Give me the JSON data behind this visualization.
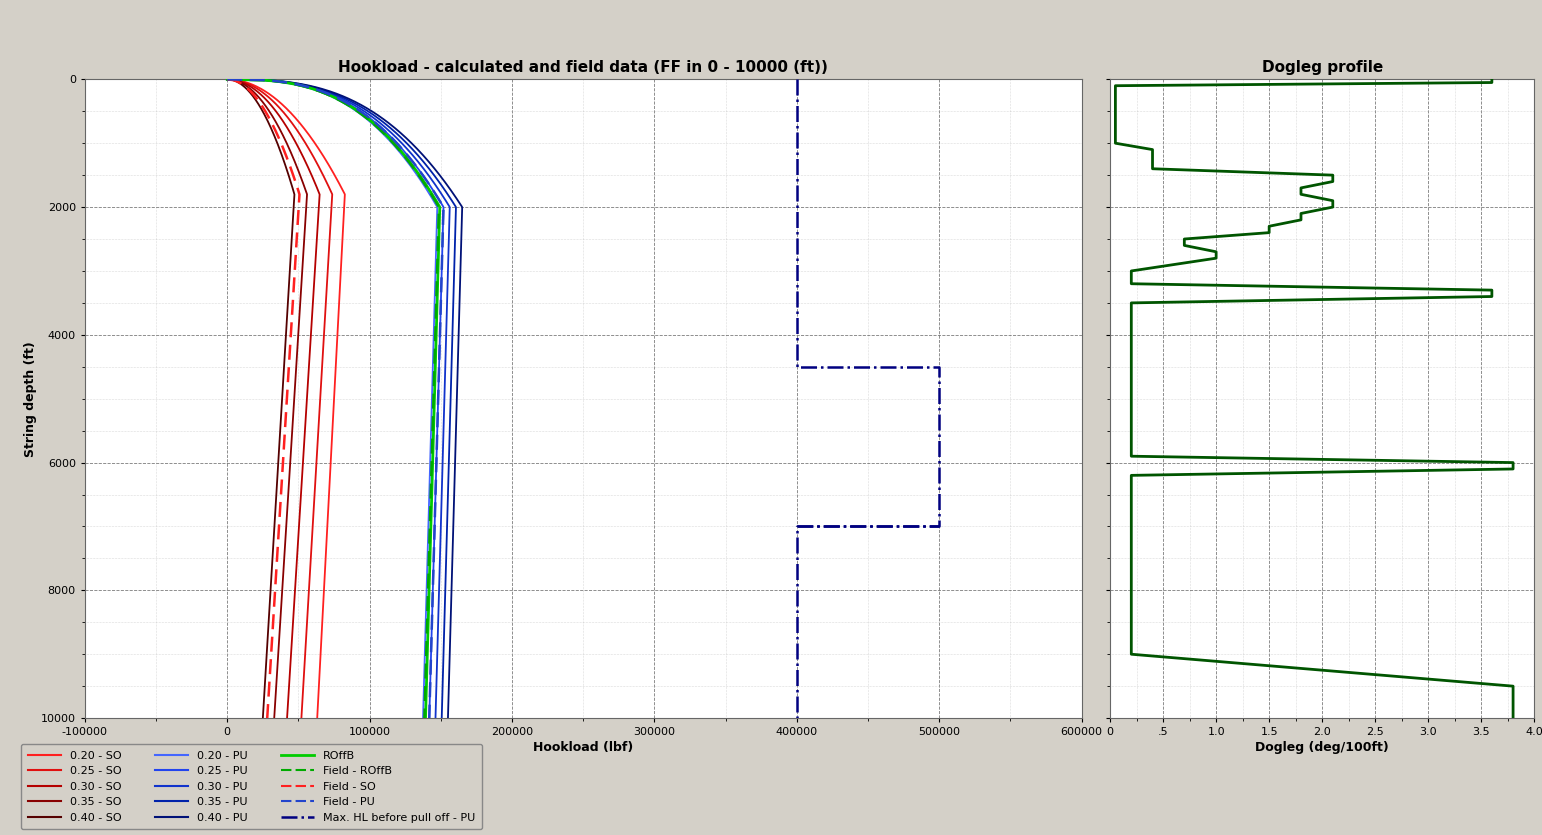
{
  "title_main": "Hookload - calculated and field data (FF in 0 - 10000 (ft))",
  "title_dogleg": "Dogleg profile",
  "xlabel_main": "Hookload (lbf)",
  "ylabel_main": "String depth (ft)",
  "xlabel_dogleg": "Dogleg (deg/100ft)",
  "xlim_main": [
    -100000,
    600000
  ],
  "ylim_main": [
    10000,
    0
  ],
  "xlim_dogleg": [
    0,
    4.0
  ],
  "ylim_dogleg": [
    10000,
    0
  ],
  "xticks_main": [
    -100000,
    0,
    100000,
    200000,
    300000,
    400000,
    500000,
    600000
  ],
  "yticks_main": [
    0,
    2000,
    4000,
    6000,
    8000,
    10000
  ],
  "xticks_dogleg": [
    0,
    0.5,
    1.0,
    1.5,
    2.0,
    2.5,
    3.0,
    3.5,
    4.0
  ],
  "xticklabels_dogleg": [
    "0",
    ".5",
    "1.0",
    "1.5",
    "2.0",
    "2.5",
    "3.0",
    "3.5",
    "4.0"
  ],
  "background_color": "#d4d0c8",
  "plot_bg_color": "#ffffff",
  "so_ff": [
    0.2,
    0.25,
    0.3,
    0.35,
    0.4
  ],
  "pu_ff": [
    0.2,
    0.25,
    0.3,
    0.35,
    0.4
  ],
  "so_colors": [
    "#ff2020",
    "#e01010",
    "#b50000",
    "#880000",
    "#550000"
  ],
  "pu_colors": [
    "#4466ff",
    "#2244ee",
    "#1133cc",
    "#0022aa",
    "#001177"
  ],
  "field_so_color": "#ff2020",
  "field_pu_color": "#2244cc",
  "field_roffb_color": "#00aa00",
  "roffb_color": "#00cc00",
  "max_hl_color": "#000080",
  "legend_fontsize": 8,
  "title_fontsize": 11,
  "axis_fontsize": 9,
  "tick_fontsize": 8,
  "figsize": [
    15.42,
    8.35
  ],
  "dpi": 100,
  "dogleg_depths": [
    0,
    50,
    100,
    200,
    400,
    500,
    600,
    800,
    1000,
    1100,
    1200,
    1400,
    1500,
    1600,
    1700,
    1800,
    1900,
    2000,
    2100,
    2200,
    2300,
    2400,
    2500,
    2600,
    2700,
    2800,
    3000,
    3200,
    3300,
    3400,
    3500,
    4000,
    5000,
    5900,
    6000,
    6100,
    6200,
    6500,
    7000,
    8000,
    9000,
    9500,
    9800,
    10000
  ],
  "dogleg_values": [
    3.6,
    3.6,
    0.05,
    0.05,
    0.05,
    0.05,
    0.05,
    0.05,
    0.05,
    0.4,
    0.4,
    0.4,
    2.1,
    2.1,
    1.8,
    1.8,
    2.1,
    2.1,
    1.8,
    1.8,
    1.5,
    1.5,
    0.7,
    0.7,
    1.0,
    1.0,
    0.2,
    0.2,
    3.6,
    3.6,
    0.2,
    0.2,
    0.2,
    0.2,
    3.8,
    3.8,
    0.2,
    0.2,
    0.2,
    0.2,
    0.2,
    3.8,
    3.8,
    3.8
  ]
}
